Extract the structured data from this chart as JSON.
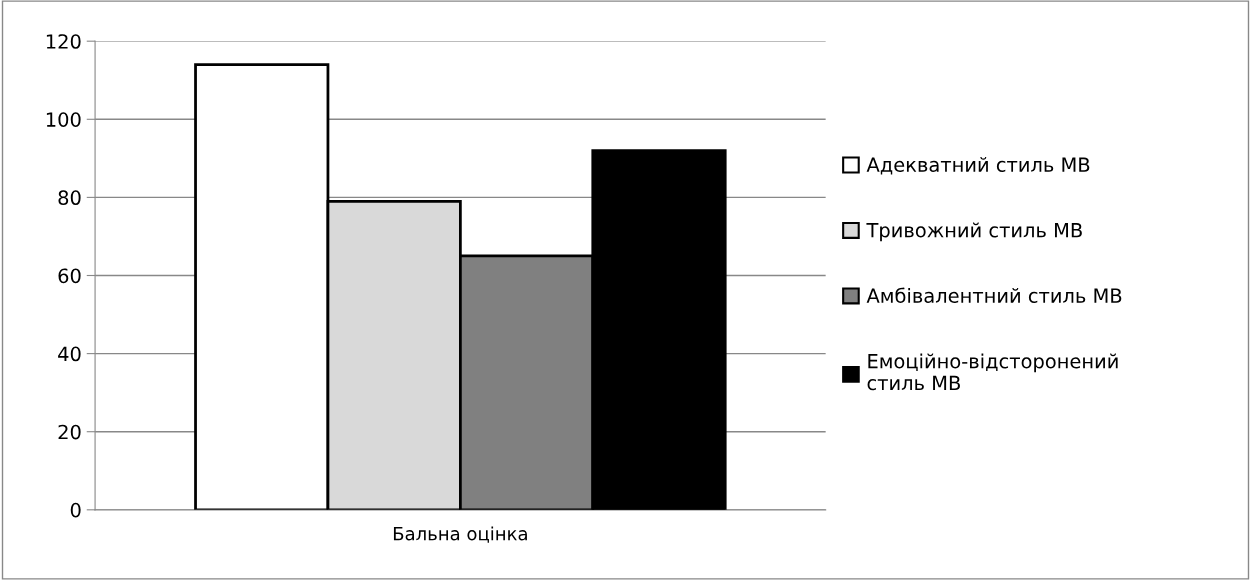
{
  "chart_data": {
    "type": "bar",
    "categories": [
      "Бальна оцінка"
    ],
    "series": [
      {
        "name": "Адекватний стиль МВ",
        "color": "#ffffff",
        "values": [
          114
        ]
      },
      {
        "name": "Тривожний стиль МВ",
        "color": "#d9d9d9",
        "values": [
          79
        ]
      },
      {
        "name": "Амбівалентний стиль МВ",
        "color": "#808080",
        "values": [
          65
        ]
      },
      {
        "name": "Емоційно-відсторонений стиль МВ",
        "color": "#000000",
        "values": [
          92
        ]
      }
    ],
    "ylim": [
      0,
      120
    ],
    "yticks": [
      0,
      20,
      40,
      60,
      80,
      100,
      120
    ],
    "grid": "y",
    "legend": "right"
  }
}
